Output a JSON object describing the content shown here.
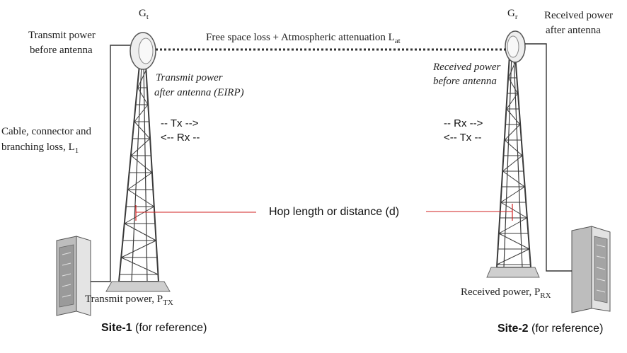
{
  "labels": {
    "gt": {
      "main": "G",
      "sub": "t"
    },
    "gr": {
      "main": "G",
      "sub": "r"
    },
    "tx_before_l1": "Transmit power",
    "tx_before_l2": "before antenna",
    "rx_after_l1": "Received power",
    "rx_after_l2": "after antenna",
    "path_main": "Free space loss + Atmospheric attenuation L",
    "path_sub": "at",
    "eirp_l1": "Transmit power",
    "eirp_l2": "after antenna (EIRP)",
    "rx_before_l1": "Received power",
    "rx_before_l2": "before antenna",
    "loss_l1": "Cable, connector and",
    "loss_l2": "branching loss, L",
    "loss_sub": "1",
    "site1_tx": "-- Tx -->",
    "site1_rx": "<-- Rx --",
    "site2_rx": "-- Rx -->",
    "site2_tx": "<-- Tx --",
    "hop": "Hop length or distance (d)",
    "ptx_main": "Transmit  power, P",
    "ptx_sub": "TX",
    "prx_main": "Received  power, P",
    "prx_sub": "RX",
    "site1_bold": "Site-1",
    "site1_rest": " (for reference)",
    "site2_bold": "Site-2",
    "site2_rest": " (for reference)"
  },
  "colors": {
    "hop_line": "#d22020",
    "ink": "#222222",
    "tower": "#3a3a3a"
  }
}
